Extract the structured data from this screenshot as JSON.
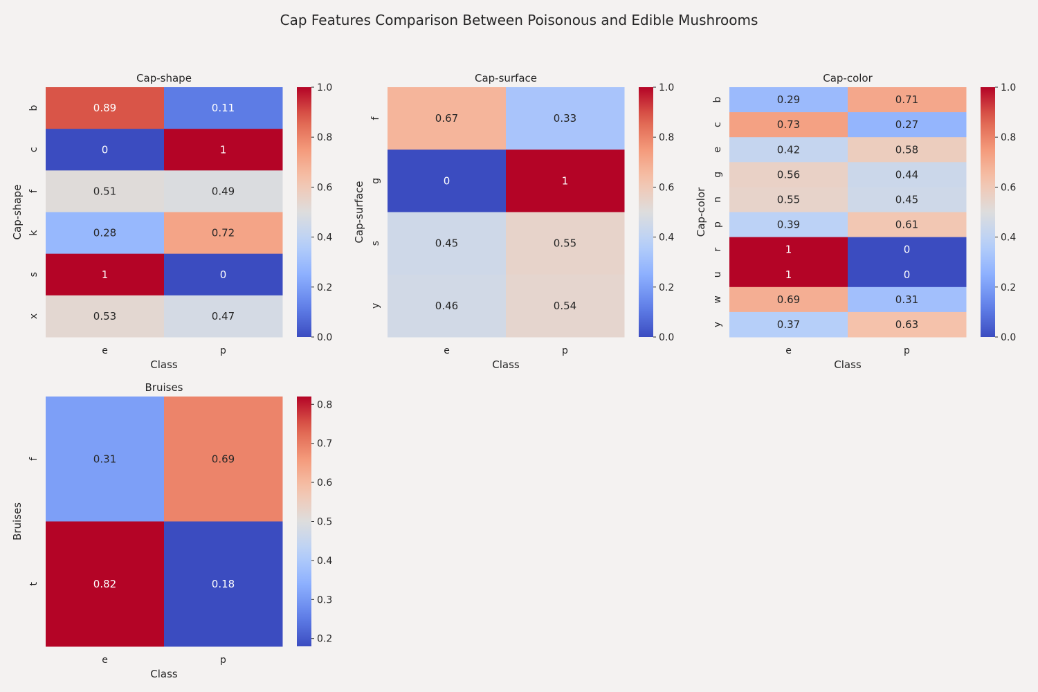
{
  "figure": {
    "title": "Cap Features Comparison Between Poisonous and Edible Mushrooms",
    "background": "#f4f2f1",
    "colormap": "coolwarm"
  },
  "chart_data": [
    {
      "type": "heatmap",
      "title": "Cap-shape",
      "xlabel": "Class",
      "ylabel": "Cap-shape",
      "x": [
        "e",
        "p"
      ],
      "y": [
        "b",
        "c",
        "f",
        "k",
        "s",
        "x"
      ],
      "values": [
        [
          0.89,
          0.11
        ],
        [
          0,
          1
        ],
        [
          0.51,
          0.49
        ],
        [
          0.28,
          0.72
        ],
        [
          1,
          0
        ],
        [
          0.53,
          0.47
        ]
      ],
      "vmin": 0,
      "vmax": 1,
      "colorbar_ticks": [
        "0.0",
        "0.2",
        "0.4",
        "0.6",
        "0.8",
        "1.0"
      ]
    },
    {
      "type": "heatmap",
      "title": "Cap-surface",
      "xlabel": "Class",
      "ylabel": "Cap-surface",
      "x": [
        "e",
        "p"
      ],
      "y": [
        "f",
        "g",
        "s",
        "y"
      ],
      "values": [
        [
          0.67,
          0.33
        ],
        [
          0,
          1
        ],
        [
          0.45,
          0.55
        ],
        [
          0.46,
          0.54
        ]
      ],
      "vmin": 0,
      "vmax": 1,
      "colorbar_ticks": [
        "0.0",
        "0.2",
        "0.4",
        "0.6",
        "0.8",
        "1.0"
      ]
    },
    {
      "type": "heatmap",
      "title": "Cap-color",
      "xlabel": "Class",
      "ylabel": "Cap-color",
      "x": [
        "e",
        "p"
      ],
      "y": [
        "b",
        "c",
        "e",
        "g",
        "n",
        "p",
        "r",
        "u",
        "w",
        "y"
      ],
      "values": [
        [
          0.29,
          0.71
        ],
        [
          0.73,
          0.27
        ],
        [
          0.42,
          0.58
        ],
        [
          0.56,
          0.44
        ],
        [
          0.55,
          0.45
        ],
        [
          0.39,
          0.61
        ],
        [
          1,
          0
        ],
        [
          1,
          0
        ],
        [
          0.69,
          0.31
        ],
        [
          0.37,
          0.63
        ]
      ],
      "vmin": 0,
      "vmax": 1,
      "colorbar_ticks": [
        "0.0",
        "0.2",
        "0.4",
        "0.6",
        "0.8",
        "1.0"
      ]
    },
    {
      "type": "heatmap",
      "title": "Bruises",
      "xlabel": "Class",
      "ylabel": "Bruises",
      "x": [
        "e",
        "p"
      ],
      "y": [
        "f",
        "t"
      ],
      "values": [
        [
          0.31,
          0.69
        ],
        [
          0.82,
          0.18
        ]
      ],
      "vmin": 0.18,
      "vmax": 0.82,
      "colorbar_ticks": [
        "0.2",
        "0.3",
        "0.4",
        "0.5",
        "0.6",
        "0.7",
        "0.8"
      ]
    }
  ]
}
